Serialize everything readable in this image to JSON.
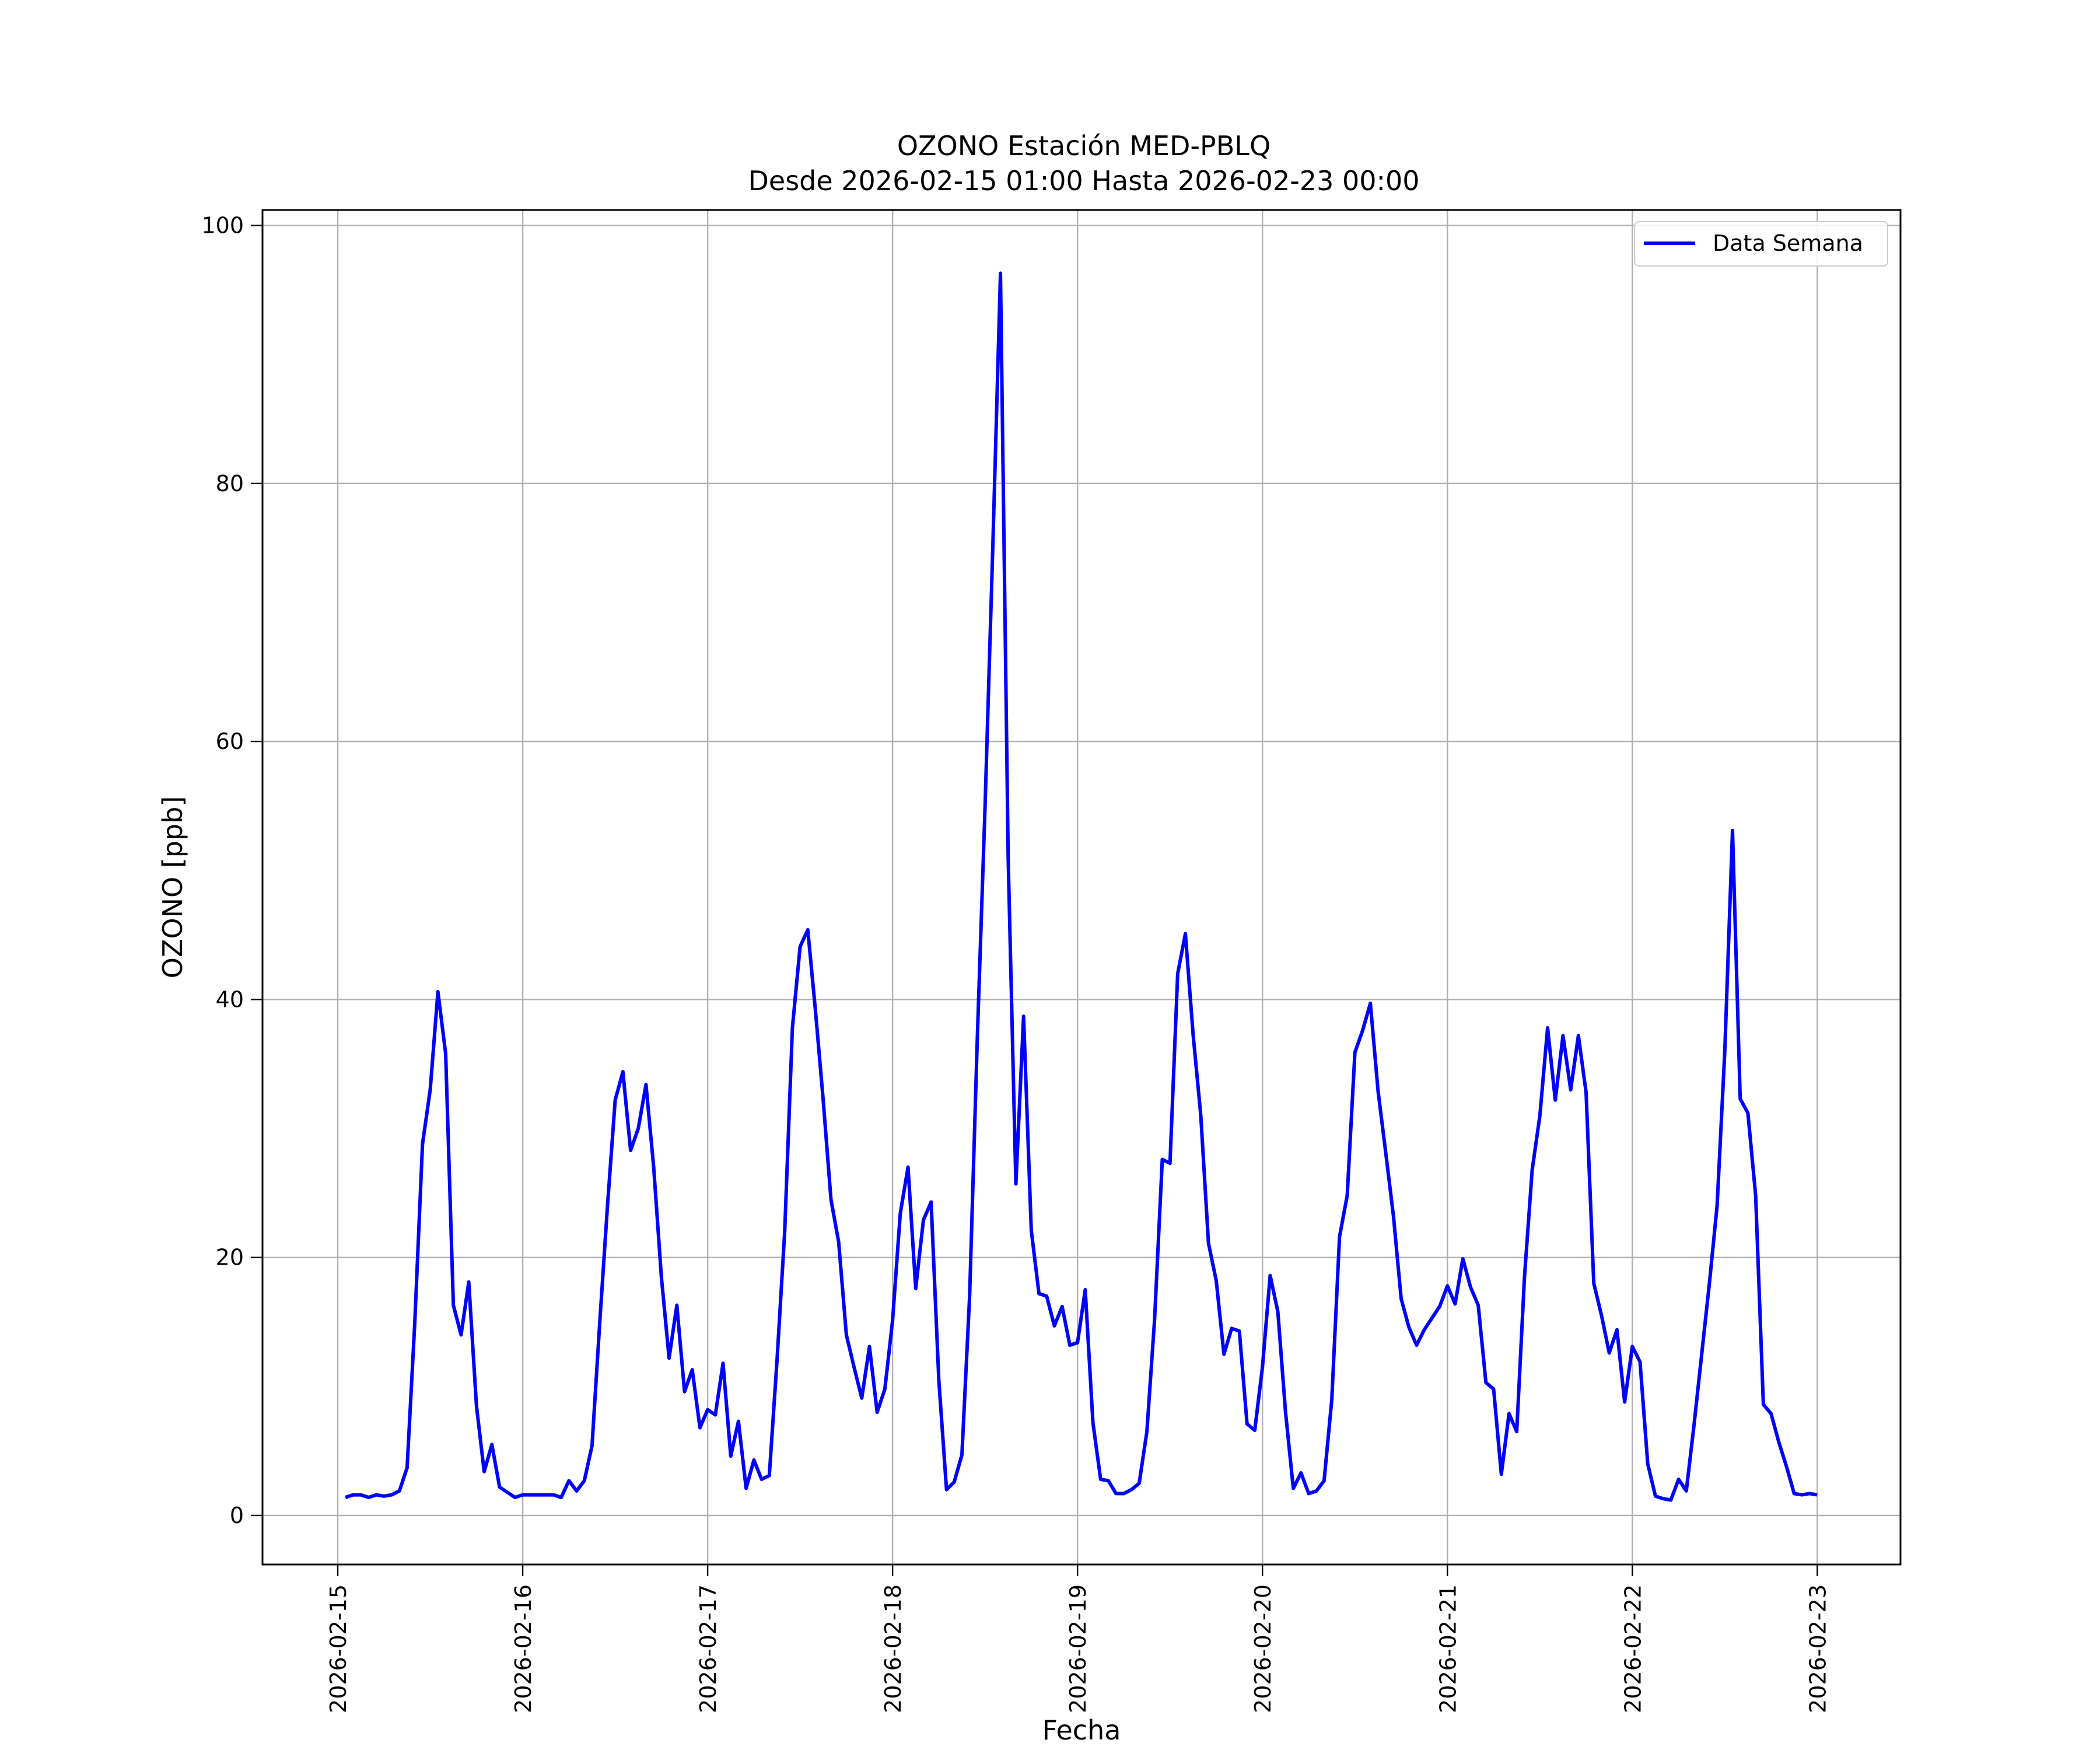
{
  "chart_data": {
    "type": "line",
    "title": "OZONO Estación MED-PBLQ",
    "subtitle": "Desde 2026-02-15 01:00 Hasta 2026-02-23 00:00",
    "xlabel": "Fecha",
    "ylabel": "OZONO [ppb]",
    "xlim": [
      "2026-02-14 14:14",
      "2026-02-23 10:48"
    ],
    "ylim": [
      -3.8,
      101.2
    ],
    "x_ticks": [
      "2026-02-15",
      "2026-02-16",
      "2026-02-17",
      "2026-02-18",
      "2026-02-19",
      "2026-02-20",
      "2026-02-21",
      "2026-02-22",
      "2026-02-23"
    ],
    "y_ticks": [
      "0",
      "20",
      "40",
      "60",
      "80",
      "100"
    ],
    "y_tick_values": [
      0,
      20,
      40,
      60,
      80,
      100
    ],
    "grid": true,
    "legend_position": "top-right",
    "line_color": "#0000ff",
    "series": [
      {
        "name": "Data Semana",
        "x": [
          "2026-02-15 01:00",
          "2026-02-15 02:00",
          "2026-02-15 03:00",
          "2026-02-15 04:00",
          "2026-02-15 05:00",
          "2026-02-15 06:00",
          "2026-02-15 07:00",
          "2026-02-15 08:00",
          "2026-02-15 09:00",
          "2026-02-15 10:00",
          "2026-02-15 11:00",
          "2026-02-15 12:00",
          "2026-02-15 13:00",
          "2026-02-15 14:00",
          "2026-02-15 15:00",
          "2026-02-15 16:00",
          "2026-02-15 17:00",
          "2026-02-15 18:00",
          "2026-02-15 19:00",
          "2026-02-15 20:00",
          "2026-02-15 21:00",
          "2026-02-15 22:00",
          "2026-02-15 23:00",
          "2026-02-16 00:00",
          "2026-02-16 01:00",
          "2026-02-16 02:00",
          "2026-02-16 03:00",
          "2026-02-16 04:00",
          "2026-02-16 05:00",
          "2026-02-16 06:00",
          "2026-02-16 07:00",
          "2026-02-16 08:00",
          "2026-02-16 09:00",
          "2026-02-16 10:00",
          "2026-02-16 11:00",
          "2026-02-16 12:00",
          "2026-02-16 13:00",
          "2026-02-16 14:00",
          "2026-02-16 15:00",
          "2026-02-16 16:00",
          "2026-02-16 17:00",
          "2026-02-16 18:00",
          "2026-02-16 19:00",
          "2026-02-16 20:00",
          "2026-02-16 21:00",
          "2026-02-16 22:00",
          "2026-02-16 23:00",
          "2026-02-17 00:00",
          "2026-02-17 01:00",
          "2026-02-17 02:00",
          "2026-02-17 03:00",
          "2026-02-17 04:00",
          "2026-02-17 05:00",
          "2026-02-17 06:00",
          "2026-02-17 07:00",
          "2026-02-17 08:00",
          "2026-02-17 09:00",
          "2026-02-17 10:00",
          "2026-02-17 11:00",
          "2026-02-17 12:00",
          "2026-02-17 13:00",
          "2026-02-17 14:00",
          "2026-02-17 15:00",
          "2026-02-17 16:00",
          "2026-02-17 17:00",
          "2026-02-17 18:00",
          "2026-02-17 19:00",
          "2026-02-17 20:00",
          "2026-02-17 21:00",
          "2026-02-17 22:00",
          "2026-02-17 23:00",
          "2026-02-18 00:00",
          "2026-02-18 01:00",
          "2026-02-18 02:00",
          "2026-02-18 03:00",
          "2026-02-18 04:00",
          "2026-02-18 05:00",
          "2026-02-18 06:00",
          "2026-02-18 07:00",
          "2026-02-18 08:00",
          "2026-02-18 09:00",
          "2026-02-18 10:00",
          "2026-02-18 11:00",
          "2026-02-18 12:00",
          "2026-02-18 13:00",
          "2026-02-18 14:00",
          "2026-02-18 15:00",
          "2026-02-18 16:00",
          "2026-02-18 17:00",
          "2026-02-18 18:00",
          "2026-02-18 19:00",
          "2026-02-18 20:00",
          "2026-02-18 21:00",
          "2026-02-18 22:00",
          "2026-02-18 23:00",
          "2026-02-19 00:00",
          "2026-02-19 01:00",
          "2026-02-19 02:00",
          "2026-02-19 03:00",
          "2026-02-19 04:00",
          "2026-02-19 05:00",
          "2026-02-19 06:00",
          "2026-02-19 07:00",
          "2026-02-19 08:00",
          "2026-02-19 09:00",
          "2026-02-19 10:00",
          "2026-02-19 11:00",
          "2026-02-19 12:00",
          "2026-02-19 13:00",
          "2026-02-19 14:00",
          "2026-02-19 15:00",
          "2026-02-19 16:00",
          "2026-02-19 17:00",
          "2026-02-19 18:00",
          "2026-02-19 19:00",
          "2026-02-19 20:00",
          "2026-02-19 21:00",
          "2026-02-19 22:00",
          "2026-02-19 23:00",
          "2026-02-20 00:00",
          "2026-02-20 01:00",
          "2026-02-20 02:00",
          "2026-02-20 03:00",
          "2026-02-20 04:00",
          "2026-02-20 05:00",
          "2026-02-20 06:00",
          "2026-02-20 07:00",
          "2026-02-20 08:00",
          "2026-02-20 09:00",
          "2026-02-20 10:00",
          "2026-02-20 11:00",
          "2026-02-20 12:00",
          "2026-02-20 13:00",
          "2026-02-20 14:00",
          "2026-02-20 15:00",
          "2026-02-20 16:00",
          "2026-02-20 17:00",
          "2026-02-20 18:00",
          "2026-02-20 19:00",
          "2026-02-20 20:00",
          "2026-02-20 21:00",
          "2026-02-20 22:00",
          "2026-02-20 23:00",
          "2026-02-21 00:00",
          "2026-02-21 01:00",
          "2026-02-21 02:00",
          "2026-02-21 03:00",
          "2026-02-21 04:00",
          "2026-02-21 05:00",
          "2026-02-21 06:00",
          "2026-02-21 07:00",
          "2026-02-21 08:00",
          "2026-02-21 09:00",
          "2026-02-21 10:00",
          "2026-02-21 11:00",
          "2026-02-21 12:00",
          "2026-02-21 13:00",
          "2026-02-21 14:00",
          "2026-02-21 15:00",
          "2026-02-21 16:00",
          "2026-02-21 17:00",
          "2026-02-21 18:00",
          "2026-02-21 19:00",
          "2026-02-21 20:00",
          "2026-02-21 21:00",
          "2026-02-21 22:00",
          "2026-02-21 23:00",
          "2026-02-22 00:00",
          "2026-02-22 01:00",
          "2026-02-22 02:00",
          "2026-02-22 03:00",
          "2026-02-22 04:00",
          "2026-02-22 05:00",
          "2026-02-22 06:00",
          "2026-02-22 07:00",
          "2026-02-22 08:00",
          "2026-02-22 09:00",
          "2026-02-22 10:00",
          "2026-02-22 11:00",
          "2026-02-22 12:00",
          "2026-02-22 13:00",
          "2026-02-22 14:00",
          "2026-02-22 15:00",
          "2026-02-22 16:00",
          "2026-02-22 17:00",
          "2026-02-22 18:00",
          "2026-02-22 19:00",
          "2026-02-22 20:00",
          "2026-02-22 21:00",
          "2026-02-22 22:00",
          "2026-02-22 23:00",
          "2026-02-23 00:00"
        ],
        "values": [
          1.4,
          1.6,
          1.6,
          1.4,
          1.6,
          1.5,
          1.6,
          1.9,
          3.7,
          15.0,
          28.8,
          33.0,
          40.6,
          35.8,
          16.3,
          14.0,
          18.1,
          8.5,
          3.4,
          5.5,
          2.2,
          1.8,
          1.4,
          1.6,
          1.6,
          1.6,
          1.6,
          1.6,
          1.4,
          2.7,
          1.9,
          2.7,
          5.4,
          15.0,
          24.0,
          32.2,
          34.4,
          28.3,
          30.0,
          33.4,
          27.0,
          18.5,
          12.2,
          16.3,
          9.6,
          11.3,
          6.8,
          8.2,
          7.8,
          11.8,
          4.6,
          7.3,
          2.1,
          4.3,
          2.8,
          3.1,
          12.0,
          22.0,
          37.8,
          44.1,
          45.4,
          39.1,
          32.2,
          24.5,
          21.2,
          14.0,
          11.5,
          9.1,
          13.1,
          8.0,
          9.8,
          15.1,
          23.4,
          27.0,
          17.6,
          22.9,
          24.3,
          10.5,
          2.0,
          2.6,
          4.7,
          17.0,
          37.0,
          55.0,
          75.0,
          96.3,
          51.0,
          25.7,
          38.7,
          22.1,
          17.2,
          17.0,
          14.7,
          16.2,
          13.2,
          13.4,
          17.5,
          7.2,
          2.8,
          2.7,
          1.7,
          1.7,
          2.0,
          2.5,
          6.5,
          15.2,
          27.6,
          27.3,
          42.0,
          45.1,
          37.3,
          31.0,
          21.1,
          18.2,
          12.5,
          14.5,
          14.3,
          7.1,
          6.6,
          11.5,
          18.6,
          15.8,
          8.0,
          2.1,
          3.3,
          1.7,
          1.9,
          2.7,
          9.0,
          21.6,
          24.8,
          35.9,
          37.6,
          39.7,
          32.9,
          28.1,
          23.2,
          16.8,
          14.6,
          13.2,
          14.4,
          15.3,
          16.2,
          17.8,
          16.4,
          19.9,
          17.7,
          16.3,
          10.3,
          9.8,
          3.2,
          7.9,
          6.5,
          18.5,
          26.8,
          31.0,
          37.8,
          32.2,
          37.2,
          33.0,
          37.2,
          32.8,
          18.0,
          15.5,
          12.6,
          14.4,
          8.8,
          13.1,
          11.9,
          4.0,
          1.5,
          1.3,
          1.2,
          2.8,
          1.9,
          7.0,
          12.5,
          18.0,
          24.0,
          36.0,
          53.1,
          32.3,
          31.2,
          24.8,
          8.6,
          7.9,
          5.7,
          3.8,
          1.7,
          1.6,
          1.7,
          1.6
        ]
      }
    ]
  }
}
